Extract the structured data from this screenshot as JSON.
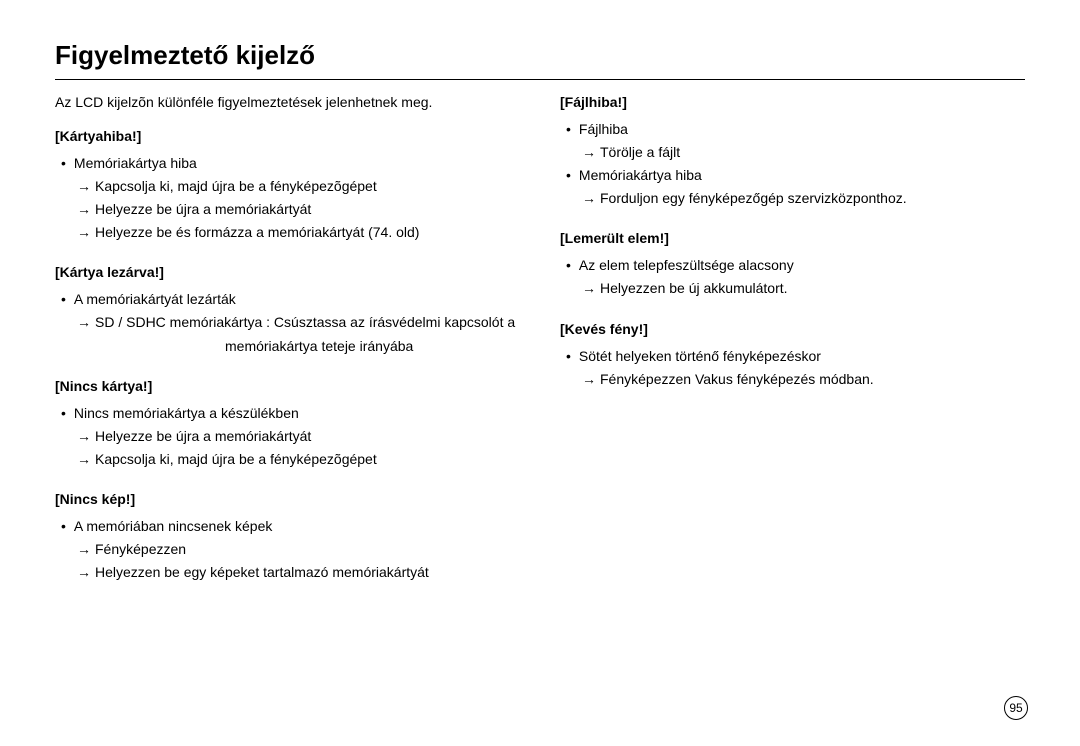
{
  "page": {
    "title": "Figyelmeztető kijelző",
    "intro": "Az LCD kijelzõn különféle figyelmeztetések jelenhetnek meg.",
    "number": "95"
  },
  "left": {
    "s1": {
      "heading": "[Kártyahiba!]",
      "b1": "Memóriakártya hiba",
      "a1": "Kapcsolja ki, majd újra be a fényképezõgépet",
      "a2": "Helyezze be újra a memóriakártyát",
      "a3": "Helyezze be és formázza a memóriakártyát (74. old)"
    },
    "s2": {
      "heading": "[Kártya lezárva!]",
      "b1": "A memóriakártyát lezárták",
      "a1": "SD / SDHC memóriakártya : Csúsztassa az írásvédelmi kapcsolót a",
      "a1c": "memóriakártya teteje irányába"
    },
    "s3": {
      "heading": "[Nincs kártya!]",
      "b1": "Nincs memóriakártya a készülékben",
      "a1": "Helyezze be újra a memóriakártyát",
      "a2": "Kapcsolja ki, majd újra be a fényképezõgépet"
    },
    "s4": {
      "heading": "[Nincs kép!]",
      "b1": "A memóriában nincsenek képek",
      "a1": "Fényképezzen",
      "a2": "Helyezzen be egy képeket tartalmazó memóriakártyát"
    }
  },
  "right": {
    "s1": {
      "heading": "[Fájlhiba!]",
      "b1": "Fájlhiba",
      "a1": "Törölje a fájlt",
      "b2": "Memóriakártya hiba",
      "a2": "Forduljon egy fényképezőgép szervizközponthoz."
    },
    "s2": {
      "heading": "[Lemerült elem!]",
      "b1": "Az elem telepfeszültsége alacsony",
      "a1": "Helyezzen be új akkumulátort."
    },
    "s3": {
      "heading": "[Kevés fény!]",
      "b1": "Sötét helyeken történő fényképezéskor",
      "a1": "Fényképezzen Vakus fényképezés módban."
    }
  },
  "marks": {
    "bullet": "•",
    "arrow": "→"
  }
}
